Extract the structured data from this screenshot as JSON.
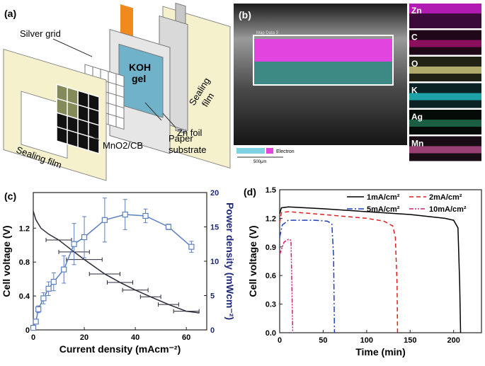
{
  "panel_a": {
    "label": "(a)",
    "silver_grid": "Silver grid",
    "koh_gel": [
      "KOH",
      "gel"
    ],
    "sealing_film_right": [
      "Sealing",
      "film"
    ],
    "zn_foil": "Zn foil",
    "paper_substrate": [
      "Paper",
      "substrate"
    ],
    "sealing_film_left": "Sealing film",
    "mno2_cb": "MnO2/CB"
  },
  "panel_b": {
    "label": "(b)",
    "map_title": "Map Data 3",
    "legend_text": "Electron",
    "scale_bar": "500µm",
    "elements": [
      "Zn",
      "C",
      "O",
      "K",
      "Ag",
      "Mn"
    ]
  },
  "chart_data": [
    {
      "type": "line",
      "panel_label": "(c)",
      "x_label": "Current density (mAcm⁻²)",
      "y_label": "Cell voltage (V)",
      "y2_label": "Power density (mWcm⁻²)",
      "xlim": [
        0,
        68
      ],
      "xticks": [
        0,
        20,
        40,
        60
      ],
      "ylim": [
        0,
        1.62
      ],
      "yticks": [
        0,
        0.4,
        0.8,
        1.2
      ],
      "y2lim": [
        0,
        20
      ],
      "y2ticks": [
        0,
        5,
        10,
        15,
        20
      ],
      "series": [
        {
          "color": "#2a2a3a",
          "x": [
            0,
            1,
            3,
            6,
            10,
            16,
            20,
            28,
            34,
            40,
            46,
            53,
            60,
            65
          ],
          "values": [
            1.4,
            1.3,
            1.2,
            1.13,
            1.06,
            0.92,
            0.83,
            0.66,
            0.56,
            0.47,
            0.39,
            0.3,
            0.22,
            0.2
          ],
          "xerr": [
            null,
            null,
            null,
            null,
            5,
            6,
            7,
            6,
            5,
            5,
            4,
            4,
            5,
            null
          ]
        },
        {
          "color": "#5b7fc2",
          "axis": "y2",
          "marker": "square",
          "x": [
            0,
            1,
            2,
            4,
            6,
            8,
            12,
            16,
            20,
            28,
            36,
            44,
            53,
            62
          ],
          "values": [
            0.3,
            1.2,
            3,
            4.6,
            6,
            7,
            8.8,
            12.5,
            13.5,
            16,
            16.8,
            16.6,
            15,
            12.1
          ],
          "errors": [
            0.3,
            0.3,
            0.5,
            0.8,
            1,
            1.3,
            2,
            3,
            3,
            3.2,
            2.2,
            1,
            0.4,
            0.8
          ]
        }
      ]
    },
    {
      "type": "line",
      "panel_label": "(d)",
      "x_label": "Time (min)",
      "y_label": "Cell voltage (V)",
      "xlim": [
        0,
        232
      ],
      "xticks": [
        0,
        50,
        100,
        150,
        200
      ],
      "ylim": [
        0,
        1.5
      ],
      "yticks": [
        {
          "value": 0,
          "label": "0.0"
        },
        0.3,
        0.6,
        0.9,
        1.2,
        1.5
      ],
      "legend": "top-right",
      "series": [
        {
          "name": "1mA/cm²",
          "color": "#000000",
          "dash": "",
          "x": [
            0,
            2,
            10,
            50,
            100,
            150,
            190,
            200,
            205,
            207,
            208
          ],
          "values": [
            1.25,
            1.31,
            1.32,
            1.3,
            1.27,
            1.24,
            1.2,
            1.18,
            1.1,
            0.5,
            0
          ]
        },
        {
          "name": "2mA/cm²",
          "color": "#e02020",
          "dash": "6 4",
          "x": [
            0,
            2,
            10,
            50,
            100,
            120,
            130,
            133,
            135,
            135.5
          ],
          "values": [
            1.15,
            1.26,
            1.27,
            1.24,
            1.2,
            1.17,
            1.12,
            1.0,
            0.5,
            0
          ]
        },
        {
          "name": "5mA/cm²",
          "color": "#2040c0",
          "dash": "8 3 2 3",
          "x": [
            0,
            3,
            10,
            40,
            55,
            60,
            62,
            63
          ],
          "values": [
            1.0,
            1.13,
            1.18,
            1.18,
            1.17,
            1.14,
            0.8,
            0
          ]
        },
        {
          "name": "10mA/cm²",
          "color": "#d0207a",
          "dash": "6 2 2 2 2 2",
          "x": [
            0,
            5,
            10,
            13,
            14,
            15
          ],
          "values": [
            0.82,
            0.95,
            0.98,
            0.97,
            0.5,
            0
          ]
        }
      ]
    }
  ]
}
